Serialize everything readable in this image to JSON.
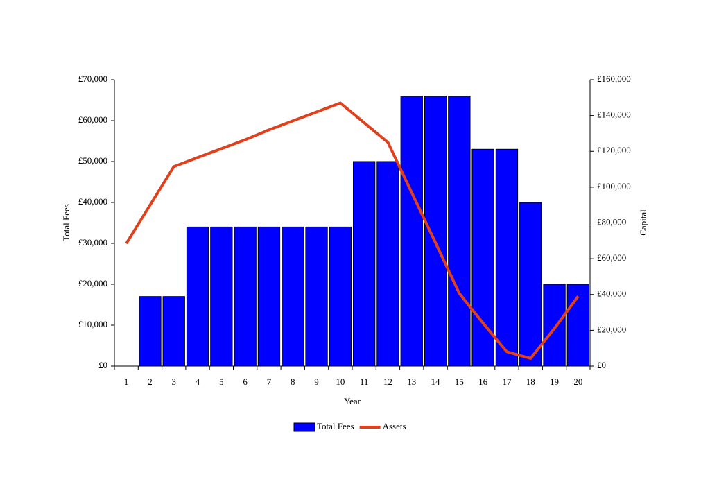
{
  "chart_data": {
    "type": "bar-line",
    "categories": [
      "1",
      "2",
      "3",
      "4",
      "5",
      "6",
      "7",
      "8",
      "9",
      "10",
      "11",
      "12",
      "13",
      "14",
      "15",
      "16",
      "17",
      "18",
      "19",
      "20"
    ],
    "x_label": "Year",
    "y_label": "Total Fees",
    "y2_label": "Capital",
    "series": [
      {
        "name": "Total Fees",
        "type": "bar",
        "color": "#0000ff",
        "values": [
          0,
          17000,
          17000,
          34000,
          34000,
          34000,
          34000,
          34000,
          34000,
          34000,
          50000,
          50000,
          66000,
          66000,
          66000,
          53000,
          53000,
          40000,
          20000,
          20000
        ]
      },
      {
        "name": "Assets",
        "type": "line",
        "axis": "y2",
        "color": "#e0401c",
        "values": [
          68500,
          90000,
          111500,
          116500,
          121500,
          126500,
          132000,
          137000,
          142000,
          147000,
          136000,
          125000,
          97000,
          69000,
          40700,
          24000,
          8000,
          4300,
          21000,
          39000
        ]
      }
    ],
    "ylim": [
      0,
      70000
    ],
    "yticks": [
      {
        "value": 0,
        "label": "£0"
      },
      {
        "value": 10000,
        "label": "£10,000"
      },
      {
        "value": 20000,
        "label": "£20,000"
      },
      {
        "value": 30000,
        "label": "£30,000"
      },
      {
        "value": 40000,
        "label": "£40,000"
      },
      {
        "value": 50000,
        "label": "£50,000"
      },
      {
        "value": 60000,
        "label": "£60,000"
      },
      {
        "value": 70000,
        "label": "£70,000"
      }
    ],
    "y2lim": [
      0,
      160000
    ],
    "y2ticks": [
      {
        "value": 0,
        "label": "£0"
      },
      {
        "value": 20000,
        "label": "£20,000"
      },
      {
        "value": 40000,
        "label": "£40,000"
      },
      {
        "value": 60000,
        "label": "£60,000"
      },
      {
        "value": 80000,
        "label": "£80,000"
      },
      {
        "value": 100000,
        "label": "£100,000"
      },
      {
        "value": 120000,
        "label": "£120,000"
      },
      {
        "value": 140000,
        "label": "£140,000"
      },
      {
        "value": 160000,
        "label": "£160,000"
      }
    ]
  }
}
